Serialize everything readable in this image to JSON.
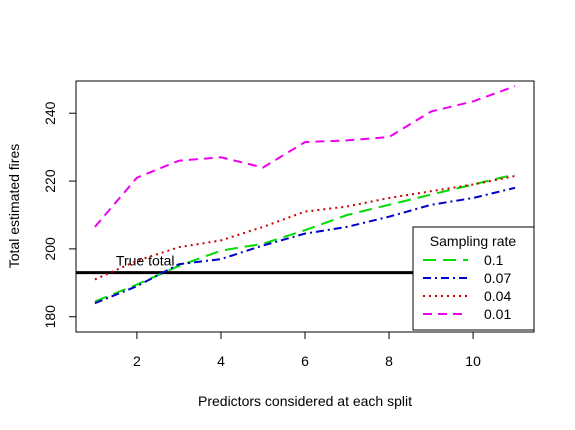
{
  "chart_data": {
    "type": "line",
    "xlabel": "Predictors considered at each split",
    "ylabel": "Total estimated fires",
    "xlim": [
      0.55,
      11.45
    ],
    "ylim": [
      175.5,
      249.5
    ],
    "x_ticks": [
      2,
      4,
      6,
      8,
      10
    ],
    "y_ticks": [
      180,
      200,
      220,
      240
    ],
    "x": [
      1,
      2,
      3,
      4,
      5,
      6,
      7,
      8,
      9,
      10,
      11
    ],
    "reference_line": {
      "value": 193,
      "label": "True total",
      "color": "#000000"
    },
    "legend": {
      "title": "Sampling rate",
      "placement": "bottom-right"
    },
    "series": [
      {
        "name": "0.1",
        "color": "#00dd00",
        "dash": "long-dash",
        "values": [
          184.5,
          189.5,
          195,
          199.5,
          201.5,
          205.5,
          210,
          213,
          216,
          219,
          222
        ]
      },
      {
        "name": "0.07",
        "color": "#0000cc",
        "dash": "dash-dot",
        "values": [
          184,
          189,
          195.5,
          197,
          201,
          204.5,
          206.5,
          209.5,
          213,
          215,
          218
        ]
      },
      {
        "name": "0.04",
        "color": "#cc0000",
        "dash": "dotted",
        "values": [
          191,
          196.5,
          200.5,
          202.5,
          206.5,
          211,
          212.5,
          215,
          217,
          219,
          221.5
        ]
      },
      {
        "name": "0.01",
        "color": "#ee00ee",
        "dash": "dashed",
        "values": [
          206.5,
          221,
          226,
          227,
          224,
          231.5,
          232,
          233,
          240.5,
          243.5,
          248
        ]
      }
    ]
  }
}
